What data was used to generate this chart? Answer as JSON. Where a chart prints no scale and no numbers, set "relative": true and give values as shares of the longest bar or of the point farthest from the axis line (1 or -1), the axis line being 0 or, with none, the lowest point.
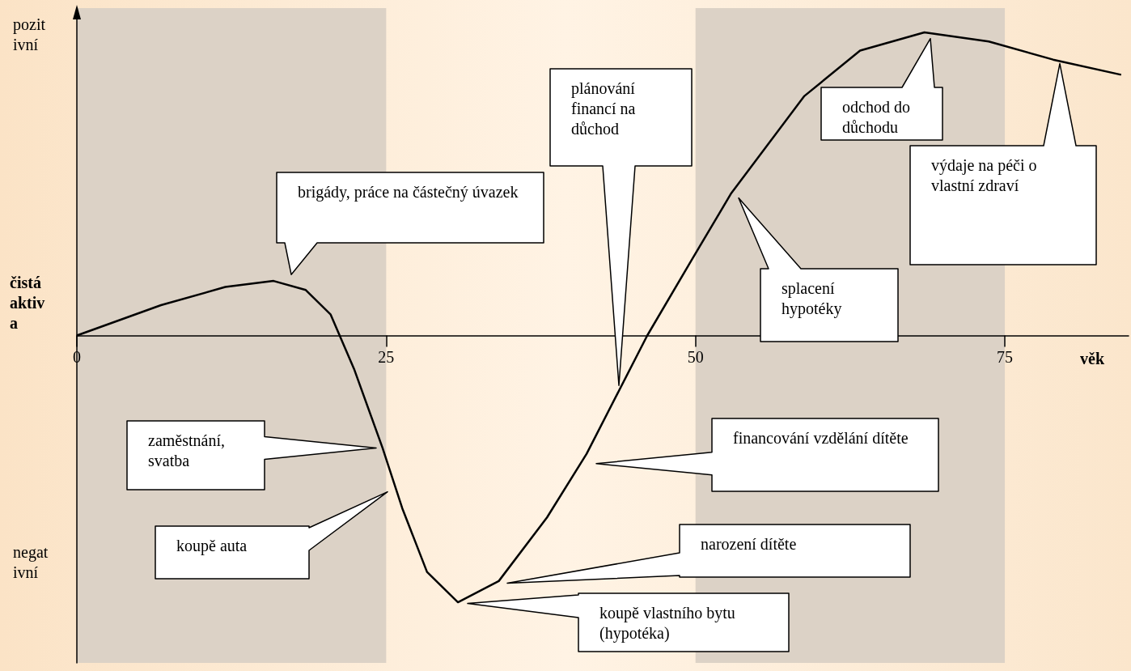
{
  "chart_data": {
    "type": "line",
    "relative": true,
    "xlabel": "věk",
    "ylabel": "čistá aktiva",
    "xlim": [
      0,
      85
    ],
    "xticks": [
      0,
      25,
      50,
      75
    ],
    "x": [
      0,
      6.8,
      12,
      15.9,
      18.5,
      20.5,
      22.4,
      24.7,
      26.3,
      28.3,
      30.8,
      34.1,
      38,
      41.2,
      46.1,
      49.7,
      52.9,
      58.8,
      63.3,
      68.5,
      73.7,
      78.9,
      84.4
    ],
    "series": [
      {
        "color": "#000000",
        "values": [
          0,
          0.1,
          0.16,
          0.18,
          0.15,
          0.07,
          -0.11,
          -0.37,
          -0.57,
          -0.78,
          -0.88,
          -0.81,
          -0.6,
          -0.39,
          0,
          0.25,
          0.47,
          0.79,
          0.94,
          1,
          0.97,
          0.91,
          0.86
        ]
      }
    ],
    "bands": [
      {
        "axis": "x",
        "from": 0,
        "to": 25,
        "color": "#dcd2c6"
      },
      {
        "axis": "x",
        "from": 50,
        "to": 75,
        "color": "#dcd2c6"
      }
    ],
    "annotations": [
      "pozitivní",
      "negativní",
      "brigády, práce na částečný úvazek",
      "plánování financí na důchod",
      "odchod do důchodu",
      "výdaje na péči o vlastní zdraví",
      "splacení hypotéky",
      "zaměstnání, svatba",
      "koupě auta",
      "financování vzdělání dítěte",
      "narození dítěte",
      "koupě vlastního bytu (hypotéka)"
    ]
  }
}
